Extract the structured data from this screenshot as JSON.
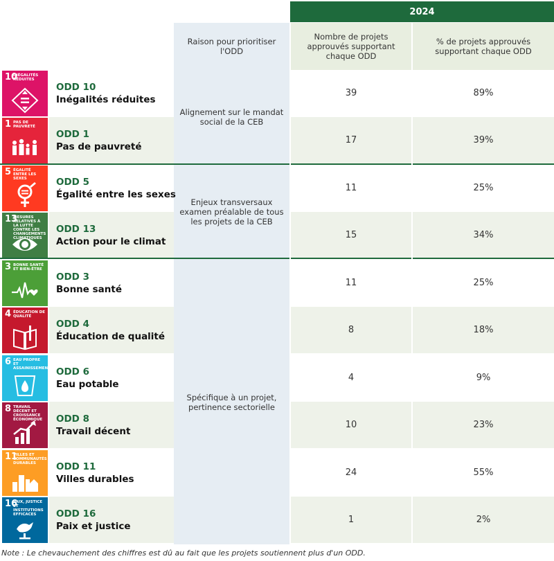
{
  "header": {
    "year": "2024",
    "col_reason": "Raison pour prioritiser l'ODD",
    "col_count": "Nombre de projets approuvés supportant chaque ODD",
    "col_pct": "% de projets approuvés supportant chaque ODD"
  },
  "reasons": [
    "Alignement sur le mandat social de la CEB",
    "Enjeux transversaux examen préalable de tous les projets de la CEB",
    "Spécifique à un projet, pertinence sectorielle"
  ],
  "rows": [
    {
      "num": "10",
      "tile_label": "Inégalités réduites",
      "color": "#dd1367",
      "icon": "reduced-inequalities-icon",
      "code": "ODD 10",
      "name": "Inégalités réduites",
      "count": "39",
      "pct": "89%"
    },
    {
      "num": "1",
      "tile_label": "Pas de pauvreté",
      "color": "#e5243b",
      "icon": "no-poverty-icon",
      "code": "ODD 1",
      "name": "Pas de pauvreté",
      "count": "17",
      "pct": "39%"
    },
    {
      "num": "5",
      "tile_label": "Égalité entre les sexes",
      "color": "#ff3a21",
      "icon": "gender-equality-icon",
      "code": "ODD 5",
      "name": "Égalité entre les sexes",
      "count": "11",
      "pct": "25%"
    },
    {
      "num": "13",
      "tile_label": "Mesures relatives à la lutte contre les changements climatiques",
      "color": "#3f7e44",
      "icon": "climate-action-icon",
      "code": "ODD 13",
      "name": "Action pour le climat",
      "count": "15",
      "pct": "34%"
    },
    {
      "num": "3",
      "tile_label": "Bonne santé et bien-être",
      "color": "#4c9f38",
      "icon": "good-health-icon",
      "code": "ODD 3",
      "name": "Bonne santé",
      "count": "11",
      "pct": "25%"
    },
    {
      "num": "4",
      "tile_label": "Éducation de qualité",
      "color": "#c5192d",
      "icon": "quality-education-icon",
      "code": "ODD 4",
      "name": "Éducation de qualité",
      "count": "8",
      "pct": "18%"
    },
    {
      "num": "6",
      "tile_label": "Eau propre et assainissement",
      "color": "#26bde2",
      "icon": "clean-water-icon",
      "code": "ODD 6",
      "name": "Eau potable",
      "count": "4",
      "pct": "9%"
    },
    {
      "num": "8",
      "tile_label": "Travail décent et croissance économique",
      "color": "#a21942",
      "icon": "decent-work-icon",
      "code": "ODD 8",
      "name": "Travail décent",
      "count": "10",
      "pct": "23%"
    },
    {
      "num": "11",
      "tile_label": "Villes et communautés durables",
      "color": "#fd9d24",
      "icon": "sustainable-cities-icon",
      "code": "ODD 11",
      "name": "Villes durables",
      "count": "24",
      "pct": "55%"
    },
    {
      "num": "16",
      "tile_label": "Paix, justice et institutions efficaces",
      "color": "#00689d",
      "icon": "peace-justice-icon",
      "code": "ODD 16",
      "name": "Paix et justice",
      "count": "1",
      "pct": "2%"
    }
  ],
  "note": "Note : Le chevauchement des chiffres est dû au fait que les projets soutiennent plus d'un ODD."
}
